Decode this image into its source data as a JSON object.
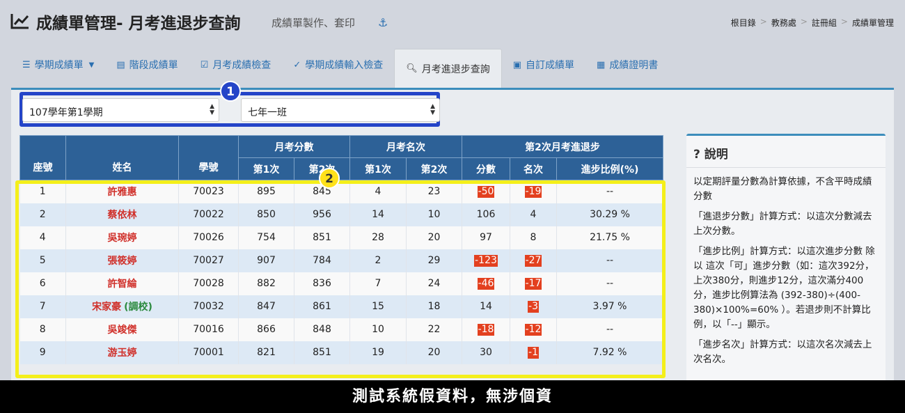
{
  "header": {
    "title": "成績單管理- 月考進退步查詢",
    "subtitle": "成績單製作、套印",
    "breadcrumb": [
      "根目錄",
      "教務處",
      "註冊組",
      "成績單管理"
    ]
  },
  "tabs": [
    {
      "label": "學期成績單",
      "icon": "list-icon",
      "dropdown": true
    },
    {
      "label": "階段成績單",
      "icon": "card-icon"
    },
    {
      "label": "月考成績檢查",
      "icon": "checkbox-icon"
    },
    {
      "label": "學期成績輸入檢查",
      "icon": "check-circle-icon"
    },
    {
      "label": "月考進退步查詢",
      "icon": "search-icon",
      "active": true
    },
    {
      "label": "自訂成績單",
      "icon": "card-icon"
    },
    {
      "label": "成績證明書",
      "icon": "id-card-icon"
    }
  ],
  "filters": {
    "term": "107學年第1學期",
    "class": "七年一班"
  },
  "badges": {
    "one": "1",
    "two": "2"
  },
  "table": {
    "headers": {
      "seat": "座號",
      "name": "姓名",
      "student_id": "學號",
      "score_group": "月考分數",
      "rank_group": "月考名次",
      "progress_group": "第2次月考進退步",
      "first": "第1次",
      "second": "第2次",
      "first_r": "第1次",
      "second_r": "第2次",
      "score_diff": "分數",
      "rank_diff": "名次",
      "ratio": "進步比例(%)"
    },
    "rows": [
      {
        "seat": "1",
        "name": "許雅惠",
        "note": "",
        "id": "70023",
        "s1": "895",
        "s2": "845",
        "r1": "4",
        "r2": "23",
        "sd": "-50",
        "rd": "-19",
        "ratio": "--"
      },
      {
        "seat": "2",
        "name": "蔡依林",
        "note": "",
        "id": "70022",
        "s1": "850",
        "s2": "956",
        "r1": "14",
        "r2": "10",
        "sd": "106",
        "rd": "4",
        "ratio": "30.29 %"
      },
      {
        "seat": "4",
        "name": "吳琬婷",
        "note": "",
        "id": "70026",
        "s1": "754",
        "s2": "851",
        "r1": "28",
        "r2": "20",
        "sd": "97",
        "rd": "8",
        "ratio": "21.75 %"
      },
      {
        "seat": "5",
        "name": "張筱婷",
        "note": "",
        "id": "70027",
        "s1": "907",
        "s2": "784",
        "r1": "2",
        "r2": "29",
        "sd": "-123",
        "rd": "-27",
        "ratio": "--"
      },
      {
        "seat": "6",
        "name": "許智綸",
        "note": "",
        "id": "70028",
        "s1": "882",
        "s2": "836",
        "r1": "7",
        "r2": "24",
        "sd": "-46",
        "rd": "-17",
        "ratio": "--"
      },
      {
        "seat": "7",
        "name": "宋家豪",
        "note": "(調校)",
        "id": "70032",
        "s1": "847",
        "s2": "861",
        "r1": "15",
        "r2": "18",
        "sd": "14",
        "rd": "-3",
        "ratio": "3.97 %"
      },
      {
        "seat": "8",
        "name": "吳竣傑",
        "note": "",
        "id": "70016",
        "s1": "866",
        "s2": "848",
        "r1": "10",
        "r2": "22",
        "sd": "-18",
        "rd": "-12",
        "ratio": "--"
      },
      {
        "seat": "9",
        "name": "游玉婷",
        "note": "",
        "id": "70001",
        "s1": "821",
        "s2": "851",
        "r1": "19",
        "r2": "20",
        "sd": "30",
        "rd": "-1",
        "ratio": "7.92 %"
      }
    ]
  },
  "panel": {
    "title": "說明",
    "paragraphs": [
      "以定期評量分數為計算依據，不含平時成績分數",
      "「進退步分數」計算方式：以這次分數減去上次分數。",
      "「進步比例」計算方式：以這次進步分數 除以 這次「可」進步分數（如：這次392分，上次380分，則進步12分，這次滿分400分，進步比例算法為 (392-380)÷(400-380)×100%=60% ）。若退步則不計算比例，以「--」顯示。",
      "「進步名次」計算方式：以這次名次減去上次名次。"
    ]
  },
  "footer_caption": "測試系統假資料，無涉個資",
  "colors": {
    "accent": "#3c8dbc",
    "table_header": "#2d6197",
    "negative": "#e3401f",
    "name_red": "#d0302a",
    "transfer_green": "#2b8a3e",
    "highlight_blue": "#2444c8",
    "highlight_yellow": "#f4ef1a"
  }
}
